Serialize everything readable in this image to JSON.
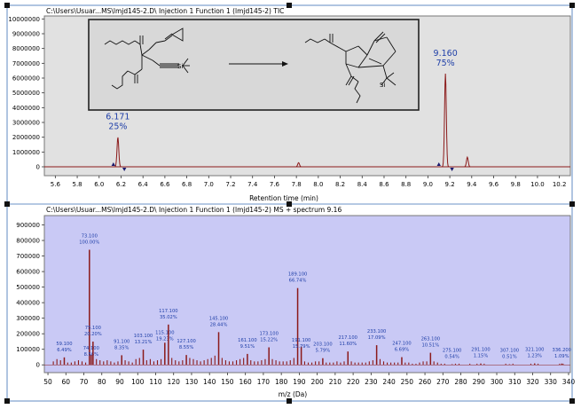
{
  "chart_data": [
    {
      "type": "line",
      "title": "C:\\Users\\Usuar...MS\\lmjd145-2.D\\ Injection 1 Function 1 (lmjd145-2) TIC",
      "xlabel": "Retention time (min)",
      "ylabel": "",
      "xlim": [
        5.5,
        10.3
      ],
      "ylim": [
        -600000,
        10200000
      ],
      "x_ticks": [
        5.6,
        5.8,
        6.0,
        6.2,
        6.4,
        6.6,
        6.8,
        7.0,
        7.2,
        7.4,
        7.6,
        7.8,
        8.0,
        8.2,
        8.4,
        8.6,
        8.8,
        9.0,
        9.2,
        9.4,
        9.6,
        9.8,
        10.0,
        10.2
      ],
      "x_tick_labels": [
        "5.6",
        "5.8",
        "6.0",
        "6.2",
        "6.4",
        "6.6",
        "6.8",
        "7.0",
        "7.2",
        "7.4",
        "7.6",
        "7.8",
        "8.0",
        "8.2",
        "8.4",
        "8.6",
        "8.8",
        "9.0",
        "9.2",
        "9.4",
        "9.6",
        "9.8",
        "10.0",
        "10.2"
      ],
      "y_ticks": [
        0,
        1000000,
        2000000,
        3000000,
        4000000,
        5000000,
        6000000,
        7000000,
        8000000,
        9000000,
        10000000
      ],
      "y_tick_labels": [
        "0",
        "1000000",
        "2000000",
        "3000000",
        "4000000",
        "5000000",
        "6000000",
        "7000000",
        "8000000",
        "9000000",
        "10000000"
      ],
      "peaks": [
        {
          "rt": 6.171,
          "height": 2000000,
          "label": "6.171",
          "percent": "25%"
        },
        {
          "rt": 7.82,
          "height": 280000
        },
        {
          "rt": 9.16,
          "height": 6300000,
          "label": "9.160",
          "percent": "75%"
        },
        {
          "rt": 9.36,
          "height": 650000
        }
      ],
      "integration_marks": [
        6.13,
        6.23,
        9.1,
        9.22
      ],
      "baseline": 0,
      "scheme_caption": "Reaction scheme: diethyl 2-(2-cyclopropylideneethyl)-2-(3-trimethylsilylprop-2-ynyl)malonate → bicyclic diester (trimethylsilyl)",
      "scheme_labels": [
        "Si",
        "Si"
      ],
      "colors": {
        "trace": "#8b1a1a",
        "plot_bg": "#e1e1e1",
        "label": "#1f3fa8"
      }
    },
    {
      "type": "bar",
      "title": "C:\\Users\\Usuar...MS\\lmjd145-2.D\\ Injection 1 Function 1 (lmjd145-2) MS + spectrum 9.16",
      "xlabel": "m/z (Da)",
      "ylabel": "",
      "xlim": [
        48,
        341
      ],
      "ylim": [
        -50000,
        960000
      ],
      "x_ticks": [
        50,
        60,
        70,
        80,
        90,
        100,
        110,
        120,
        130,
        140,
        150,
        160,
        170,
        180,
        190,
        200,
        210,
        220,
        230,
        240,
        250,
        260,
        270,
        280,
        290,
        300,
        310,
        320,
        330,
        340
      ],
      "x_tick_labels": [
        "50",
        "60",
        "70",
        "80",
        "90",
        "100",
        "110",
        "120",
        "130",
        "140",
        "150",
        "160",
        "170",
        "180",
        "190",
        "200",
        "210",
        "220",
        "230",
        "240",
        "250",
        "260",
        "270",
        "280",
        "290",
        "300",
        "310",
        "320",
        "330",
        "340"
      ],
      "y_ticks": [
        0,
        100000,
        200000,
        300000,
        400000,
        500000,
        600000,
        700000,
        800000,
        900000
      ],
      "y_tick_labels": [
        "0",
        "100000",
        "200000",
        "300000",
        "400000",
        "500000",
        "600000",
        "700000",
        "800000",
        "900000"
      ],
      "base_peak_intensity": 740000,
      "labeled_peaks": [
        {
          "mz": 59.1,
          "label": "59.100",
          "percent": "6.49%"
        },
        {
          "mz": 73.1,
          "label": "73.100",
          "percent": "100.00%"
        },
        {
          "mz": 74.1,
          "label": "74.100",
          "percent": "8.56%"
        },
        {
          "mz": 75.1,
          "label": "75.100",
          "percent": "20.20%"
        },
        {
          "mz": 91.1,
          "label": "91.100",
          "percent": "8.35%"
        },
        {
          "mz": 103.1,
          "label": "103.100",
          "percent": "13.21%"
        },
        {
          "mz": 115.1,
          "label": "115.100",
          "percent": "19.23%"
        },
        {
          "mz": 117.1,
          "label": "117.100",
          "percent": "35.02%"
        },
        {
          "mz": 127.1,
          "label": "127.100",
          "percent": "8.55%"
        },
        {
          "mz": 145.1,
          "label": "145.100",
          "percent": "28.44%"
        },
        {
          "mz": 161.1,
          "label": "161.100",
          "percent": "9.51%"
        },
        {
          "mz": 173.1,
          "label": "173.100",
          "percent": "15.22%"
        },
        {
          "mz": 189.1,
          "label": "189.100",
          "percent": "66.74%"
        },
        {
          "mz": 191.1,
          "label": "191.100",
          "percent": "15.79%"
        },
        {
          "mz": 203.1,
          "label": "203.100",
          "percent": "5.79%"
        },
        {
          "mz": 217.1,
          "label": "217.100",
          "percent": "11.60%"
        },
        {
          "mz": 233.1,
          "label": "233.100",
          "percent": "17.09%"
        },
        {
          "mz": 247.1,
          "label": "247.100",
          "percent": "6.69%"
        },
        {
          "mz": 263.1,
          "label": "263.100",
          "percent": "10.51%"
        },
        {
          "mz": 275.1,
          "label": "275.100",
          "percent": "0.54%"
        },
        {
          "mz": 291.1,
          "label": "291.100",
          "percent": "1.15%"
        },
        {
          "mz": 307.1,
          "label": "307.100",
          "percent": "0.51%"
        },
        {
          "mz": 321.1,
          "label": "321.100",
          "percent": "1.23%"
        },
        {
          "mz": 336.2,
          "label": "336.200",
          "percent": "1.09%"
        }
      ],
      "minor_peaks": [
        [
          53,
          3
        ],
        [
          55,
          5
        ],
        [
          57,
          4
        ],
        [
          61,
          2
        ],
        [
          63,
          2
        ],
        [
          65,
          3
        ],
        [
          67,
          4
        ],
        [
          69,
          3
        ],
        [
          71,
          2
        ],
        [
          77,
          5
        ],
        [
          79,
          4
        ],
        [
          81,
          3
        ],
        [
          83,
          4
        ],
        [
          85,
          3
        ],
        [
          87,
          2
        ],
        [
          89,
          3
        ],
        [
          93,
          4
        ],
        [
          95,
          3
        ],
        [
          97,
          2
        ],
        [
          99,
          5
        ],
        [
          101,
          6
        ],
        [
          105,
          4
        ],
        [
          107,
          5
        ],
        [
          109,
          3
        ],
        [
          111,
          4
        ],
        [
          113,
          5
        ],
        [
          119,
          6
        ],
        [
          121,
          4
        ],
        [
          123,
          3
        ],
        [
          125,
          4
        ],
        [
          129,
          6
        ],
        [
          131,
          5
        ],
        [
          133,
          4
        ],
        [
          135,
          3
        ],
        [
          137,
          4
        ],
        [
          139,
          5
        ],
        [
          141,
          6
        ],
        [
          143,
          8
        ],
        [
          147,
          6
        ],
        [
          149,
          4
        ],
        [
          151,
          3
        ],
        [
          153,
          3
        ],
        [
          155,
          4
        ],
        [
          157,
          5
        ],
        [
          159,
          6
        ],
        [
          163,
          4
        ],
        [
          165,
          3
        ],
        [
          167,
          3
        ],
        [
          169,
          4
        ],
        [
          171,
          5
        ],
        [
          175,
          5
        ],
        [
          177,
          4
        ],
        [
          179,
          3
        ],
        [
          181,
          3
        ],
        [
          183,
          3
        ],
        [
          185,
          4
        ],
        [
          187,
          6
        ],
        [
          193,
          3
        ],
        [
          195,
          2
        ],
        [
          197,
          2
        ],
        [
          199,
          3
        ],
        [
          201,
          3
        ],
        [
          205,
          2
        ],
        [
          207,
          2
        ],
        [
          209,
          2
        ],
        [
          211,
          3
        ],
        [
          213,
          2
        ],
        [
          215,
          3
        ],
        [
          219,
          3
        ],
        [
          221,
          2
        ],
        [
          223,
          2
        ],
        [
          225,
          2
        ],
        [
          227,
          2
        ],
        [
          229,
          3
        ],
        [
          231,
          4
        ],
        [
          235,
          5
        ],
        [
          237,
          3
        ],
        [
          239,
          2
        ],
        [
          241,
          2
        ],
        [
          243,
          2
        ],
        [
          245,
          2
        ],
        [
          249,
          2
        ],
        [
          251,
          2
        ],
        [
          253,
          1
        ],
        [
          255,
          1
        ],
        [
          257,
          2
        ],
        [
          259,
          3
        ],
        [
          261,
          3
        ],
        [
          265,
          3
        ],
        [
          267,
          2
        ],
        [
          269,
          1
        ],
        [
          271,
          1
        ],
        [
          277,
          1
        ],
        [
          279,
          1
        ],
        [
          285,
          1
        ],
        [
          289,
          1
        ],
        [
          293,
          1
        ],
        [
          305,
          1
        ],
        [
          309,
          1
        ],
        [
          319,
          1
        ],
        [
          323,
          1
        ],
        [
          335,
          1
        ],
        [
          337,
          1
        ]
      ],
      "colors": {
        "bar": "#8b1a1a",
        "plot_bg": "#c9c9f5",
        "label": "#1f3fa8"
      }
    }
  ]
}
